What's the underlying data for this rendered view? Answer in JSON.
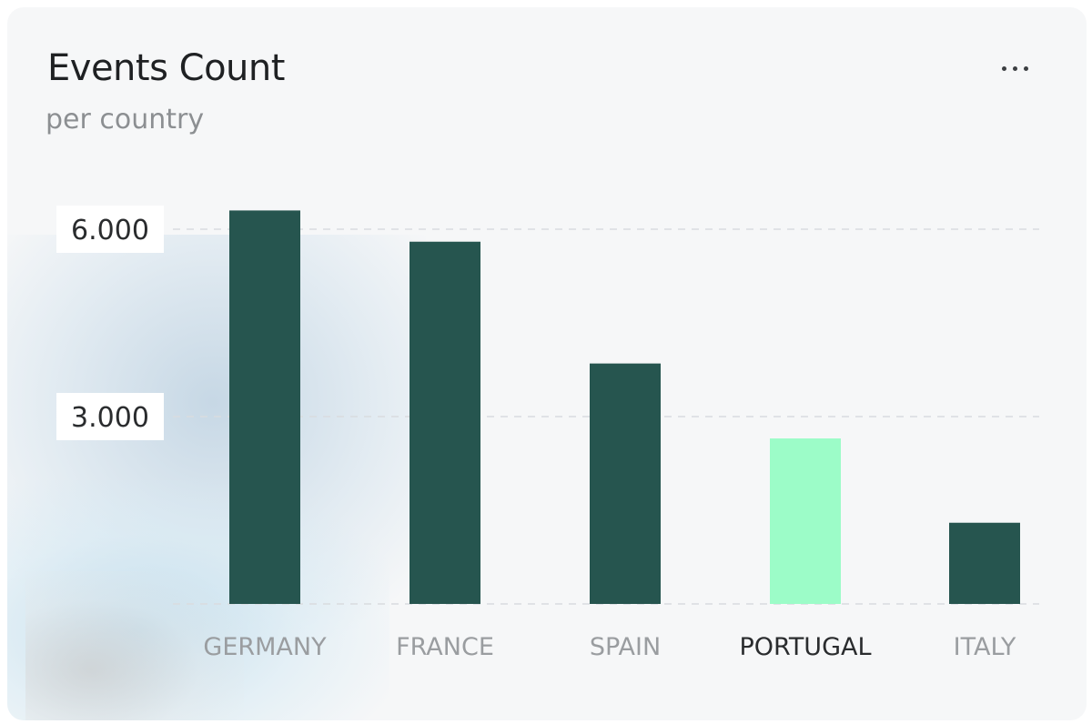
{
  "header": {
    "title": "Events Count",
    "subtitle": "per country",
    "menu_icon": "more-horizontal-icon"
  },
  "colors": {
    "bar": "#26554f",
    "highlight_bar": "#9cfcc8",
    "gridline": "#d9dcdf"
  },
  "chart_data": {
    "type": "bar",
    "title": "Events Count",
    "subtitle": "per country",
    "categories": [
      "GERMANY",
      "FRANCE",
      "SPAIN",
      "PORTUGAL",
      "ITALY"
    ],
    "values": [
      6300,
      5800,
      3850,
      2650,
      1300
    ],
    "highlighted": "PORTUGAL",
    "y_ticks": [
      {
        "value": 3000,
        "label": "3.000"
      },
      {
        "value": 6000,
        "label": "6.000"
      }
    ],
    "ylim": [
      0,
      6300
    ],
    "grid": true,
    "xlabel": "",
    "ylabel": ""
  }
}
